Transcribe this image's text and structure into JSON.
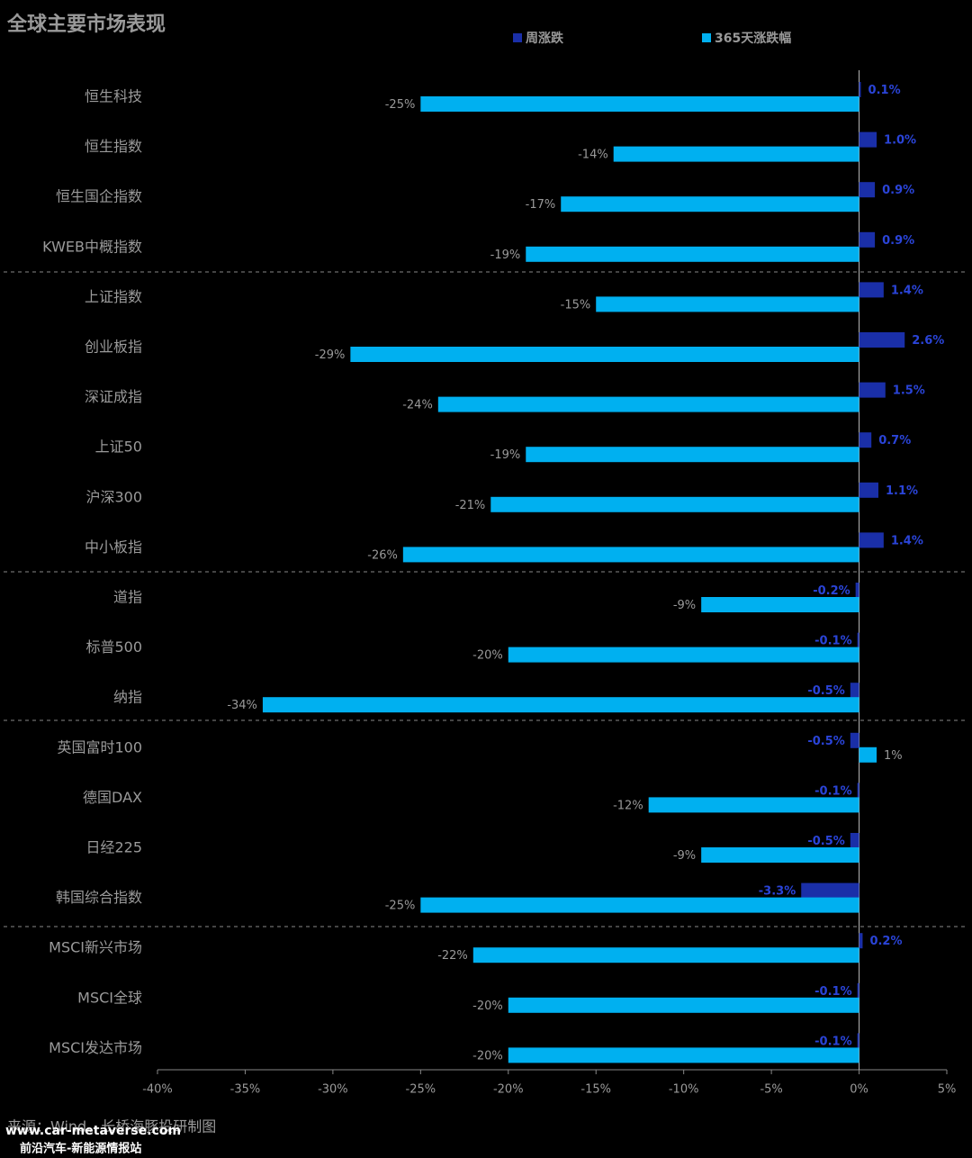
{
  "chart_data": {
    "type": "hbar",
    "title": "全球主要市场表现",
    "categories": [
      "恒生科技",
      "恒生指数",
      "恒生国企指数",
      "KWEB中概指数",
      "上证指数",
      "创业板指",
      "深证成指",
      "上证50",
      "沪深300",
      "中小板指",
      "道指",
      "标普500",
      "纳指",
      "英国富时100",
      "德国DAX",
      "日经225",
      "韩国综合指数",
      "MSCI新兴市场",
      "MSCI全球",
      "MSCI发达市场"
    ],
    "series": [
      {
        "name": "周涨跌",
        "color": "#1a2fa8",
        "values": [
          0.1,
          1.0,
          0.9,
          0.9,
          1.4,
          2.6,
          1.5,
          0.7,
          1.1,
          1.4,
          -0.2,
          -0.1,
          -0.5,
          -0.5,
          -0.1,
          -0.5,
          -3.3,
          0.2,
          -0.1,
          -0.1
        ],
        "value_labels": [
          "0.1%",
          "1.0%",
          "0.9%",
          "0.9%",
          "1.4%",
          "2.6%",
          "1.5%",
          "0.7%",
          "1.1%",
          "1.4%",
          "-0.2%",
          "-0.1%",
          "-0.5%",
          "-0.5%",
          "-0.1%",
          "-0.5%",
          "-3.3%",
          "0.2%",
          "-0.1%",
          "-0.1%"
        ]
      },
      {
        "name": "365天涨跌幅",
        "color": "#00b0f0",
        "values": [
          -25,
          -14,
          -17,
          -19,
          -15,
          -29,
          -24,
          -19,
          -21,
          -26,
          -9,
          -20,
          -34,
          1,
          -12,
          -9,
          -25,
          -22,
          -20,
          -20
        ],
        "value_labels": [
          "-25%",
          "-14%",
          "-17%",
          "-19%",
          "-15%",
          "-29%",
          "-24%",
          "-19%",
          "-21%",
          "-26%",
          "-9%",
          "-20%",
          "-34%",
          "1%",
          "-12%",
          "-9%",
          "-25%",
          "-22%",
          "-20%",
          "-20%"
        ]
      }
    ],
    "xlim": [
      -40,
      5
    ],
    "xticks": [
      {
        "value": -40,
        "label": "-40%"
      },
      {
        "value": -35,
        "label": "-35%"
      },
      {
        "value": -30,
        "label": "-30%"
      },
      {
        "value": -25,
        "label": "-25%"
      },
      {
        "value": -20,
        "label": "-20%"
      },
      {
        "value": -15,
        "label": "-15%"
      },
      {
        "value": -10,
        "label": "-10%"
      },
      {
        "value": -5,
        "label": "-5%"
      },
      {
        "value": 0,
        "label": "0%"
      },
      {
        "value": 5,
        "label": "5%"
      }
    ],
    "source": "来源：Wind、长桥海豚投研制图",
    "watermark": [
      "www.car-metaverse.com",
      "前沿汽车-新能源情报站"
    ]
  }
}
